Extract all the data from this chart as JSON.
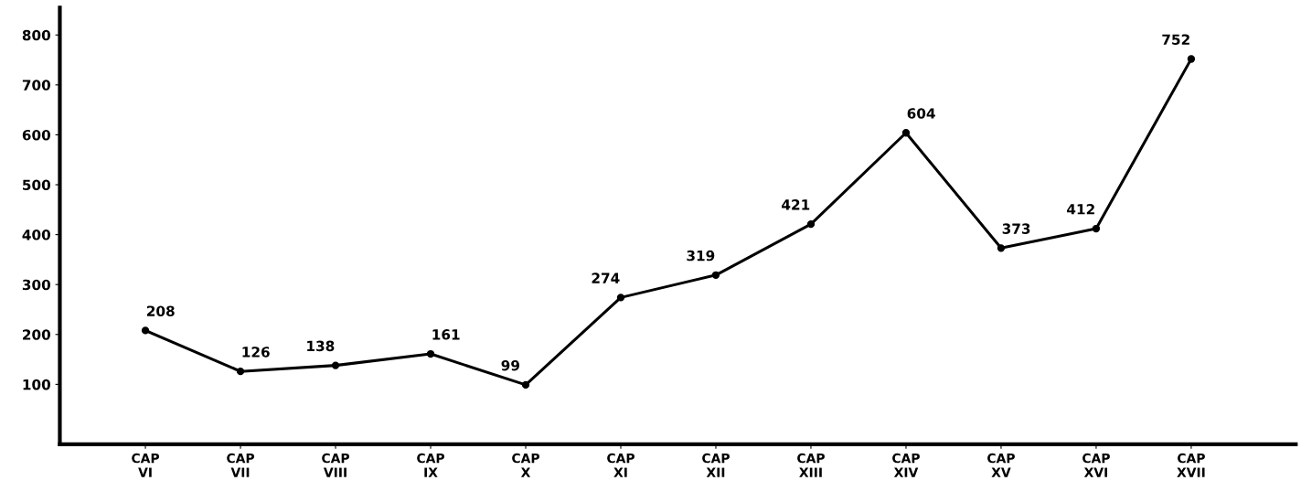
{
  "chart_data": {
    "type": "line",
    "categories": [
      "CAP\nVI",
      "CAP\nVII",
      "CAP\nVIII",
      "CAP\nIX",
      "CAP\nX",
      "CAP\nXI",
      "CAP\nXII",
      "CAP\nXIII",
      "CAP\nXIV",
      "CAP\nXV",
      "CAP\nXVI",
      "CAP\nXVII"
    ],
    "series": [
      {
        "color": "#000000",
        "values": [
          208,
          126,
          138,
          161,
          99,
          274,
          319,
          421,
          604,
          373,
          412,
          752
        ]
      }
    ],
    "data_labels": true,
    "ylim": [
      -20,
      855
    ],
    "yticks": [
      100,
      200,
      300,
      400,
      500,
      600,
      700,
      800
    ],
    "grid": false,
    "legend": false,
    "marker": "circle",
    "line_style": "solid"
  }
}
